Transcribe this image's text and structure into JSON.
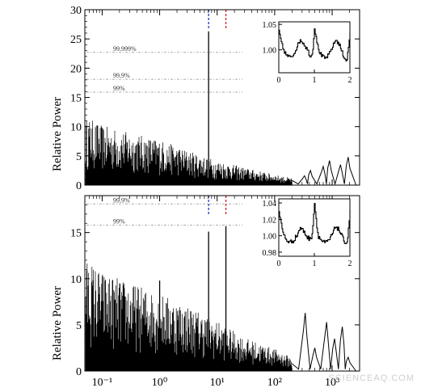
{
  "watermark": "SCIENCEAQ.COM",
  "colors": {
    "ink": "#000000",
    "blue_marker": "#2233cc",
    "red_marker": "#cc2222",
    "sig_line": "#aaaaaa"
  },
  "chart_data": [
    {
      "type": "line",
      "panel": "top",
      "ylabel": "Relative Power",
      "xlabel": "",
      "x_scale": "log",
      "xlim": [
        0.05,
        3000
      ],
      "ylim": [
        0,
        30
      ],
      "y_ticks": [
        0,
        5,
        10,
        15,
        20,
        25,
        30
      ],
      "x_ticks": [
        0.1,
        1,
        10,
        100,
        1000
      ],
      "x_tick_labels": [
        "10⁻¹",
        "10⁰",
        "10¹",
        "10²",
        "10³"
      ],
      "significance_levels": [
        {
          "label": "99.999%",
          "y": 22.7
        },
        {
          "label": "99.9%",
          "y": 18.1
        },
        {
          "label": "99%",
          "y": 15.9
        }
      ],
      "markers": [
        {
          "color": "blue",
          "x": 7.1
        },
        {
          "color": "red",
          "x": 14.2
        }
      ],
      "peaks": [
        {
          "x": 7.1,
          "y": 26.3
        }
      ],
      "envelope": [
        {
          "x": 0.06,
          "y": 9.5
        },
        {
          "x": 0.1,
          "y": 8.5
        },
        {
          "x": 0.3,
          "y": 7.5
        },
        {
          "x": 1,
          "y": 6.5
        },
        {
          "x": 3,
          "y": 5.0
        },
        {
          "x": 10,
          "y": 3.5
        },
        {
          "x": 30,
          "y": 2.5
        },
        {
          "x": 100,
          "y": 1.5
        },
        {
          "x": 200,
          "y": 1.0
        }
      ],
      "tail_peaks": [
        {
          "x": 330,
          "y": 1.6
        },
        {
          "x": 420,
          "y": 2.5
        },
        {
          "x": 700,
          "y": 3.2
        },
        {
          "x": 900,
          "y": 4.2
        },
        {
          "x": 1400,
          "y": 3.5
        },
        {
          "x": 1900,
          "y": 4.8
        }
      ],
      "inset": {
        "type": "line",
        "xlim": [
          0,
          2
        ],
        "ylim": [
          0.955,
          1.055
        ],
        "x_ticks": [
          0,
          1,
          2
        ],
        "x_tick_labels": [
          "0",
          "1",
          "2"
        ],
        "y_ticks": [
          1.0,
          1.05
        ],
        "y_tick_labels": [
          "1.00",
          "1.05"
        ],
        "x": [
          0,
          0.1,
          0.2,
          0.3,
          0.4,
          0.5,
          0.6,
          0.7,
          0.8,
          0.9,
          0.95,
          1.0,
          1.05,
          1.1,
          1.2,
          1.3,
          1.4,
          1.5,
          1.6,
          1.7,
          1.8,
          1.9,
          1.95,
          2.0
        ],
        "y": [
          1.035,
          1.005,
          0.99,
          0.985,
          0.99,
          1.005,
          1.02,
          1.012,
          1.0,
          0.985,
          1.0,
          1.042,
          1.025,
          1.002,
          0.988,
          0.983,
          0.99,
          1.005,
          1.02,
          1.01,
          0.99,
          0.978,
          1.0,
          1.035
        ]
      }
    },
    {
      "type": "line",
      "panel": "bottom",
      "ylabel": "Relative Power",
      "xlabel": "",
      "x_scale": "log",
      "xlim": [
        0.05,
        3000
      ],
      "ylim": [
        0,
        19
      ],
      "y_ticks": [
        0,
        5,
        10,
        15
      ],
      "x_ticks": [
        0.1,
        1,
        10,
        100,
        1000
      ],
      "x_tick_labels": [
        "10⁻¹",
        "10⁰",
        "10¹",
        "10²",
        "10³"
      ],
      "significance_levels": [
        {
          "label": "99.9%",
          "y": 18.1
        },
        {
          "label": "99%",
          "y": 15.8
        }
      ],
      "markers": [
        {
          "color": "blue",
          "x": 7.1
        },
        {
          "color": "red",
          "x": 14.2
        }
      ],
      "peaks": [
        {
          "x": 1.0,
          "y": 9.8
        },
        {
          "x": 7.1,
          "y": 15.1
        },
        {
          "x": 14.2,
          "y": 15.7
        }
      ],
      "envelope": [
        {
          "x": 0.06,
          "y": 10.0
        },
        {
          "x": 0.1,
          "y": 9.0
        },
        {
          "x": 0.3,
          "y": 8.0
        },
        {
          "x": 1,
          "y": 7.0
        },
        {
          "x": 3,
          "y": 6.0
        },
        {
          "x": 10,
          "y": 4.5
        },
        {
          "x": 30,
          "y": 3.0
        },
        {
          "x": 100,
          "y": 2.0
        },
        {
          "x": 200,
          "y": 1.2
        }
      ],
      "tail_peaks": [
        {
          "x": 340,
          "y": 6.3
        },
        {
          "x": 500,
          "y": 2.5
        },
        {
          "x": 800,
          "y": 5.3
        },
        {
          "x": 1100,
          "y": 3.5
        },
        {
          "x": 1500,
          "y": 4.8
        },
        {
          "x": 1900,
          "y": 1.5
        }
      ],
      "inset": {
        "type": "line",
        "xlim": [
          0,
          2
        ],
        "ylim": [
          0.975,
          1.045
        ],
        "x_ticks": [
          0,
          1,
          2
        ],
        "x_tick_labels": [
          "0",
          "1",
          "2"
        ],
        "y_ticks": [
          0.98,
          1.0,
          1.02,
          1.04
        ],
        "y_tick_labels": [
          "0.98",
          "1.00",
          "1.02",
          "1.04"
        ],
        "x": [
          0,
          0.1,
          0.2,
          0.3,
          0.4,
          0.5,
          0.6,
          0.7,
          0.8,
          0.9,
          0.95,
          1.0,
          1.05,
          1.1,
          1.2,
          1.3,
          1.4,
          1.5,
          1.6,
          1.7,
          1.8,
          1.9,
          1.95,
          2.0
        ],
        "y": [
          1.03,
          1.005,
          0.995,
          0.992,
          0.994,
          1.0,
          1.01,
          1.005,
          0.998,
          0.995,
          1.01,
          1.04,
          1.018,
          1.0,
          0.994,
          0.991,
          0.994,
          1.002,
          1.012,
          1.006,
          0.996,
          0.99,
          1.004,
          1.032
        ]
      }
    }
  ]
}
